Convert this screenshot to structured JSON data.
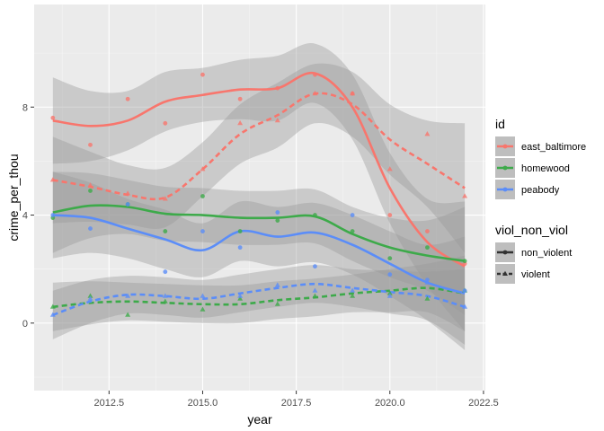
{
  "chart_data": {
    "type": "line",
    "xlabel": "year",
    "ylabel": "crime_per_thou",
    "xlim": [
      2010.5,
      2022.55
    ],
    "ylim": [
      -2.5,
      11.8
    ],
    "x_ticks": [
      2012.5,
      2015.0,
      2017.5,
      2020.0,
      2022.5
    ],
    "x_tick_labels": [
      "2012.5",
      "2015.0",
      "2017.5",
      "2020.0",
      "2022.5"
    ],
    "y_ticks": [
      0,
      4,
      8
    ],
    "y_tick_labels": [
      "0",
      "4",
      "8"
    ],
    "grid": true,
    "legend_placement": "right",
    "legend": {
      "color_title": "id",
      "color_entries": [
        {
          "label": "east_baltimore",
          "color": "#F8766D"
        },
        {
          "label": "homewood",
          "color": "#3DAA4A"
        },
        {
          "label": "peabody",
          "color": "#5B8DF8"
        }
      ],
      "linetype_title": "viol_non_viol",
      "linetype_entries": [
        {
          "label": "non_violent",
          "dash": "solid",
          "shape": "circle"
        },
        {
          "label": "violent",
          "dash": "dashed",
          "shape": "triangle"
        }
      ]
    },
    "series": [
      {
        "id": "east_baltimore",
        "type": "non_violent",
        "color": "#F8766D",
        "dash": "solid",
        "shape": "circle",
        "points": [
          [
            2011,
            7.6
          ],
          [
            2012,
            6.6
          ],
          [
            2013,
            8.3
          ],
          [
            2014,
            7.4
          ],
          [
            2015,
            9.2
          ],
          [
            2016,
            8.3
          ],
          [
            2017,
            8.7
          ],
          [
            2018,
            9.2
          ],
          [
            2019,
            8.5
          ],
          [
            2020,
            4.0
          ],
          [
            2021,
            3.4
          ],
          [
            2022,
            2.2
          ]
        ],
        "smooth": [
          [
            2011,
            7.5
          ],
          [
            2012,
            7.3
          ],
          [
            2013,
            7.5
          ],
          [
            2014,
            8.2
          ],
          [
            2015,
            8.45
          ],
          [
            2016,
            8.65
          ],
          [
            2017,
            8.7
          ],
          [
            2018,
            9.25
          ],
          [
            2019,
            8.0
          ],
          [
            2020,
            5.0
          ],
          [
            2021,
            3.0
          ],
          [
            2022,
            2.1
          ]
        ],
        "band": [
          1.6,
          1.3,
          1.1,
          1.1,
          1.0,
          1.1,
          1.2,
          1.1,
          1.2,
          1.3,
          1.6,
          2.4
        ]
      },
      {
        "id": "east_baltimore",
        "type": "violent",
        "color": "#F8766D",
        "dash": "dashed",
        "shape": "triangle",
        "points": [
          [
            2011,
            5.3
          ],
          [
            2012,
            5.1
          ],
          [
            2013,
            4.8
          ],
          [
            2014,
            4.6
          ],
          [
            2015,
            5.7
          ],
          [
            2016,
            7.4
          ],
          [
            2017,
            7.5
          ],
          [
            2018,
            8.5
          ],
          [
            2019,
            8.5
          ],
          [
            2020,
            5.7
          ],
          [
            2021,
            7.0
          ],
          [
            2022,
            4.7
          ]
        ],
        "smooth": [
          [
            2011,
            5.3
          ],
          [
            2012,
            5.05
          ],
          [
            2013,
            4.75
          ],
          [
            2014,
            4.65
          ],
          [
            2015,
            5.7
          ],
          [
            2016,
            7.0
          ],
          [
            2017,
            7.7
          ],
          [
            2018,
            8.5
          ],
          [
            2019,
            8.1
          ],
          [
            2020,
            6.8
          ],
          [
            2021,
            5.9
          ],
          [
            2022,
            5.0
          ]
        ],
        "band": [
          1.6,
          1.3,
          1.1,
          1.1,
          1.0,
          1.1,
          1.2,
          1.1,
          1.2,
          1.3,
          1.6,
          2.4
        ]
      },
      {
        "id": "homewood",
        "type": "non_violent",
        "color": "#3DAA4A",
        "dash": "solid",
        "shape": "circle",
        "points": [
          [
            2011,
            3.9
          ],
          [
            2012,
            4.9
          ],
          [
            2013,
            4.4
          ],
          [
            2014,
            3.4
          ],
          [
            2015,
            4.7
          ],
          [
            2016,
            3.4
          ],
          [
            2017,
            3.8
          ],
          [
            2018,
            4.0
          ],
          [
            2019,
            3.4
          ],
          [
            2020,
            2.4
          ],
          [
            2021,
            2.8
          ],
          [
            2022,
            2.3
          ]
        ],
        "smooth": [
          [
            2011,
            4.1
          ],
          [
            2012,
            4.35
          ],
          [
            2013,
            4.3
          ],
          [
            2014,
            4.05
          ],
          [
            2015,
            4.0
          ],
          [
            2016,
            3.9
          ],
          [
            2017,
            3.9
          ],
          [
            2018,
            3.95
          ],
          [
            2019,
            3.3
          ],
          [
            2020,
            2.8
          ],
          [
            2021,
            2.5
          ],
          [
            2022,
            2.3
          ]
        ],
        "band": [
          1.5,
          1.2,
          1.0,
          1.0,
          1.0,
          1.0,
          1.0,
          1.0,
          1.0,
          1.1,
          1.3,
          2.0
        ]
      },
      {
        "id": "homewood",
        "type": "violent",
        "color": "#3DAA4A",
        "dash": "dashed",
        "shape": "triangle",
        "points": [
          [
            2011,
            0.6
          ],
          [
            2012,
            1.0
          ],
          [
            2013,
            0.3
          ],
          [
            2014,
            0.8
          ],
          [
            2015,
            0.5
          ],
          [
            2016,
            0.9
          ],
          [
            2017,
            0.7
          ],
          [
            2018,
            1.0
          ],
          [
            2019,
            1.0
          ],
          [
            2020,
            1.1
          ],
          [
            2021,
            0.9
          ],
          [
            2022,
            1.2
          ]
        ],
        "smooth": [
          [
            2011,
            0.6
          ],
          [
            2012,
            0.75
          ],
          [
            2013,
            0.8
          ],
          [
            2014,
            0.75
          ],
          [
            2015,
            0.7
          ],
          [
            2016,
            0.7
          ],
          [
            2017,
            0.85
          ],
          [
            2018,
            0.95
          ],
          [
            2019,
            1.1
          ],
          [
            2020,
            1.2
          ],
          [
            2021,
            1.3
          ],
          [
            2022,
            1.1
          ]
        ],
        "band": [
          0.9,
          0.8,
          0.7,
          0.7,
          0.7,
          0.7,
          0.7,
          0.7,
          0.7,
          0.8,
          0.9,
          1.4
        ]
      },
      {
        "id": "peabody",
        "type": "non_violent",
        "color": "#5B8DF8",
        "dash": "solid",
        "shape": "circle",
        "points": [
          [
            2011,
            4.0
          ],
          [
            2012,
            3.5
          ],
          [
            2013,
            4.4
          ],
          [
            2014,
            1.9
          ],
          [
            2015,
            3.4
          ],
          [
            2016,
            2.8
          ],
          [
            2017,
            4.1
          ],
          [
            2018,
            2.1
          ],
          [
            2019,
            4.0
          ],
          [
            2020,
            1.8
          ],
          [
            2021,
            1.6
          ],
          [
            2022,
            1.2
          ]
        ],
        "smooth": [
          [
            2011,
            4.0
          ],
          [
            2012,
            3.9
          ],
          [
            2013,
            3.5
          ],
          [
            2014,
            3.1
          ],
          [
            2015,
            2.7
          ],
          [
            2016,
            3.4
          ],
          [
            2017,
            3.2
          ],
          [
            2018,
            3.35
          ],
          [
            2019,
            2.9
          ],
          [
            2020,
            2.2
          ],
          [
            2021,
            1.5
          ],
          [
            2022,
            1.1
          ]
        ],
        "band": [
          1.6,
          1.3,
          1.1,
          1.1,
          1.0,
          1.1,
          1.1,
          1.1,
          1.1,
          1.2,
          1.4,
          2.1
        ]
      },
      {
        "id": "peabody",
        "type": "violent",
        "color": "#5B8DF8",
        "dash": "dashed",
        "shape": "triangle",
        "points": [
          [
            2011,
            0.3
          ],
          [
            2012,
            0.9
          ],
          [
            2013,
            1.0
          ],
          [
            2014,
            1.0
          ],
          [
            2015,
            1.0
          ],
          [
            2016,
            1.0
          ],
          [
            2017,
            1.4
          ],
          [
            2018,
            1.2
          ],
          [
            2019,
            1.2
          ],
          [
            2020,
            1.0
          ],
          [
            2021,
            1.5
          ],
          [
            2022,
            0.6
          ]
        ],
        "smooth": [
          [
            2011,
            0.3
          ],
          [
            2012,
            0.8
          ],
          [
            2013,
            1.05
          ],
          [
            2014,
            1.0
          ],
          [
            2015,
            0.9
          ],
          [
            2016,
            1.1
          ],
          [
            2017,
            1.3
          ],
          [
            2018,
            1.45
          ],
          [
            2019,
            1.3
          ],
          [
            2020,
            1.15
          ],
          [
            2021,
            1.0
          ],
          [
            2022,
            0.6
          ]
        ],
        "band": [
          0.9,
          0.8,
          0.7,
          0.7,
          0.7,
          0.7,
          0.7,
          0.7,
          0.7,
          0.8,
          0.9,
          1.4
        ]
      }
    ]
  }
}
